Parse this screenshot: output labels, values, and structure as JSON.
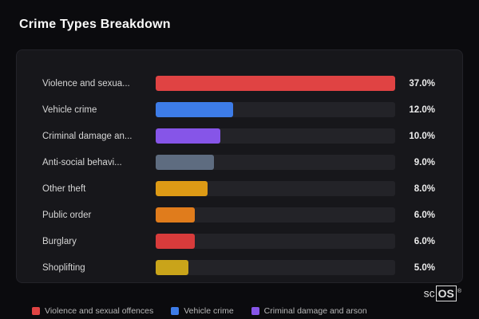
{
  "page": {
    "title": "Crime Types Breakdown"
  },
  "chart_data": {
    "type": "bar",
    "orientation": "horizontal",
    "title": "Crime Types Breakdown",
    "categories": [
      "Violence and sexua...",
      "Vehicle crime",
      "Criminal damage an...",
      "Anti-social behavi...",
      "Other theft",
      "Public order",
      "Burglary",
      "Shoplifting"
    ],
    "values": [
      37.0,
      12.0,
      10.0,
      9.0,
      8.0,
      6.0,
      6.0,
      5.0
    ],
    "value_unit": "%",
    "xlabel": "",
    "ylabel": "",
    "grid": false,
    "legend_position": "bottom",
    "bar_colors": [
      "#e04343",
      "#3d7ce8",
      "#8655e8",
      "#5e6c80",
      "#dd9a15",
      "#e07c1c",
      "#d83b3b",
      "#c9a41a"
    ]
  },
  "rows": [
    {
      "label": "Violence and sexua...",
      "value": 37.0,
      "value_label": "37.0%",
      "color": "#e04343"
    },
    {
      "label": "Vehicle crime",
      "value": 12.0,
      "value_label": "12.0%",
      "color": "#3d7ce8"
    },
    {
      "label": "Criminal damage an...",
      "value": 10.0,
      "value_label": "10.0%",
      "color": "#8655e8"
    },
    {
      "label": "Anti-social behavi...",
      "value": 9.0,
      "value_label": "9.0%",
      "color": "#5e6c80"
    },
    {
      "label": "Other theft",
      "value": 8.0,
      "value_label": "8.0%",
      "color": "#dd9a15"
    },
    {
      "label": "Public order",
      "value": 6.0,
      "value_label": "6.0%",
      "color": "#e07c1c"
    },
    {
      "label": "Burglary",
      "value": 6.0,
      "value_label": "6.0%",
      "color": "#d83b3b"
    },
    {
      "label": "Shoplifting",
      "value": 5.0,
      "value_label": "5.0%",
      "color": "#c9a41a"
    }
  ],
  "legend": [
    {
      "label": "Violence and sexual offences",
      "color": "#e04343"
    },
    {
      "label": "Vehicle crime",
      "color": "#3d7ce8"
    },
    {
      "label": "Criminal damage and arson",
      "color": "#8655e8"
    }
  ],
  "logo": {
    "prefix": "sc",
    "boxed": "OS",
    "registered": "®"
  },
  "colors": {
    "background": "#0b0b0e",
    "card": "#17171b",
    "track": "#232328",
    "title_text": "#fafafa",
    "label_text": "#d6d6d6",
    "value_text": "#ededed",
    "legend_text": "#b8b8b8"
  }
}
